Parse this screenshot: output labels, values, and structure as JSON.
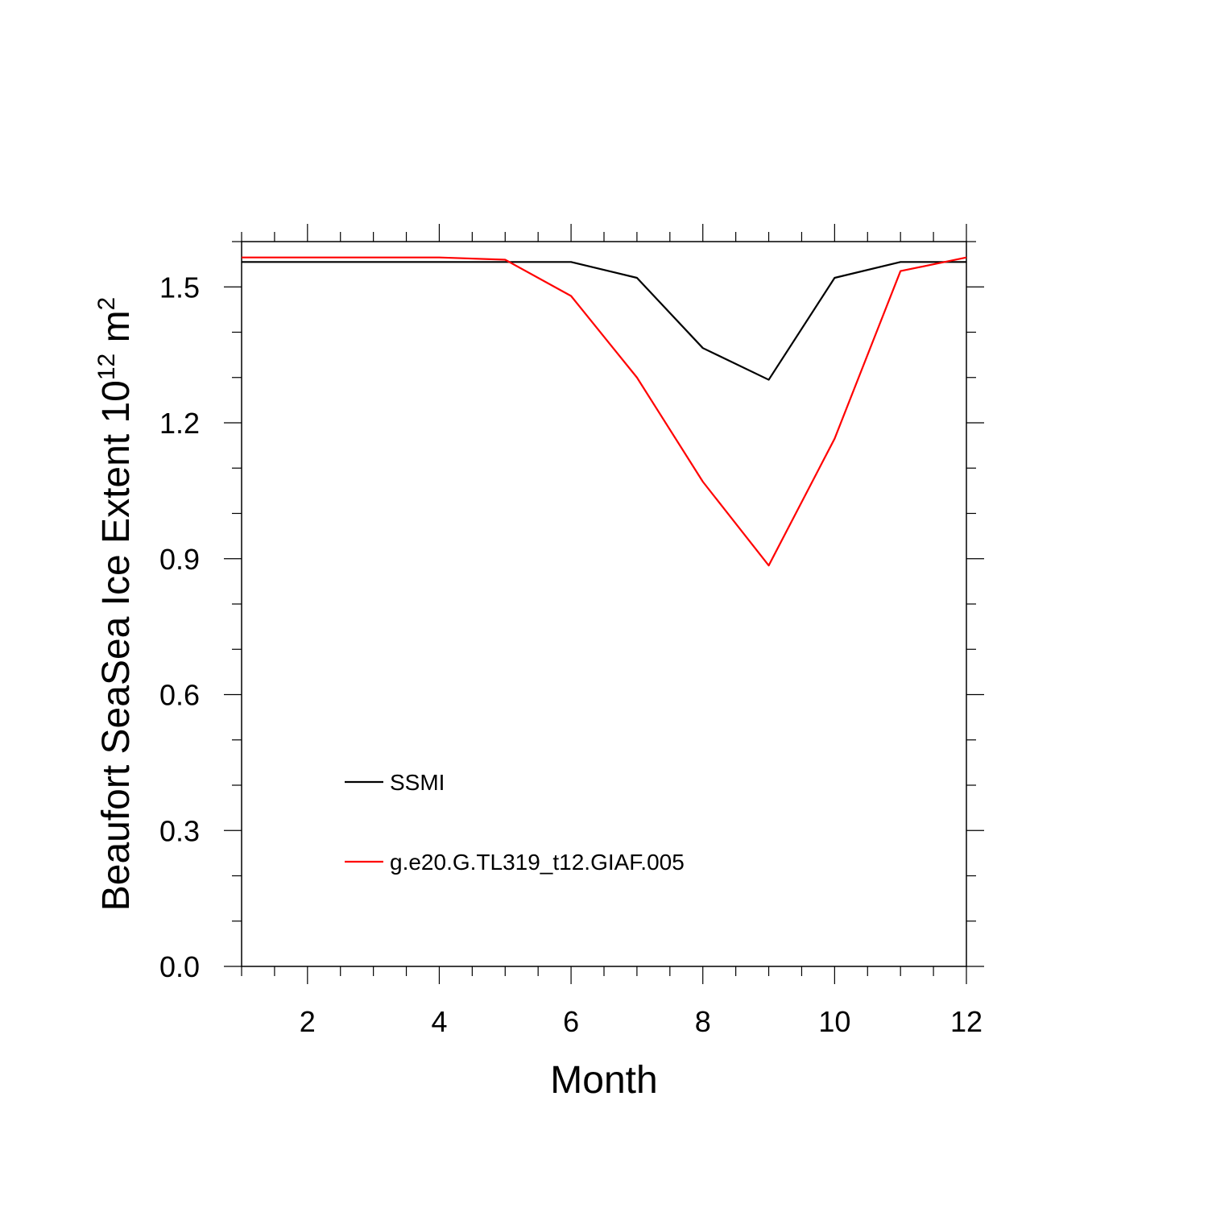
{
  "chart_data": {
    "type": "line",
    "title": "",
    "xlabel": "Month",
    "ylabel": {
      "text": "Beaufort SeaSea Ice Extent 10",
      "sup1": "12",
      "unit": " m",
      "sup2": "2"
    },
    "xlim": [
      1,
      12
    ],
    "ylim": [
      0,
      1.6
    ],
    "x_ticks": [
      2,
      4,
      6,
      8,
      10,
      12
    ],
    "x_tick_labels": [
      "2",
      "4",
      "6",
      "8",
      "10",
      "12"
    ],
    "y_ticks": [
      0.0,
      0.3,
      0.6,
      0.9,
      1.2,
      1.5
    ],
    "y_tick_labels": [
      "0.0",
      "0.3",
      "0.6",
      "0.9",
      "1.2",
      "1.5"
    ],
    "grid": false,
    "legend_position": "lower-left",
    "x": [
      1,
      2,
      3,
      4,
      5,
      6,
      7,
      8,
      9,
      10,
      11,
      12
    ],
    "series": [
      {
        "name": "SSMI",
        "color": "#000000",
        "values": [
          1.555,
          1.555,
          1.555,
          1.555,
          1.555,
          1.555,
          1.52,
          1.365,
          1.295,
          1.52,
          1.555,
          1.555
        ]
      },
      {
        "name": "g.e20.G.TL319_t12.GIAF.005",
        "color": "#ff0000",
        "values": [
          1.565,
          1.565,
          1.565,
          1.565,
          1.56,
          1.48,
          1.3,
          1.07,
          0.885,
          1.165,
          1.535,
          1.565
        ]
      }
    ]
  }
}
